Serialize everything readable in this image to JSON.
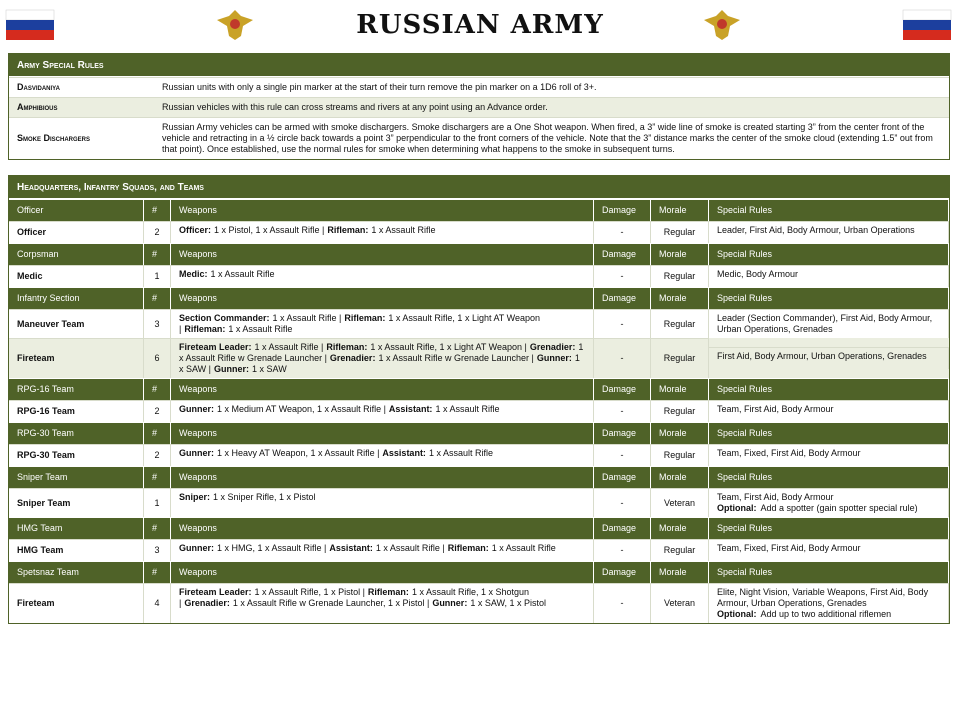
{
  "header": {
    "title": "RUSSIAN ARMY"
  },
  "special_rules": {
    "title": "Army Special Rules",
    "rows": [
      {
        "name": "Dasvidaniya",
        "text": "Russian units with only a single pin marker at the start of their turn remove the pin marker on a 1D6 roll of 3+."
      },
      {
        "name": "Amphibious",
        "text": "Russian vehicles with this rule can cross streams and rivers at any point using an Advance order."
      },
      {
        "name": "Smoke Dischargers",
        "text": "Russian Army vehicles can be armed with smoke dischargers.  Smoke dischargers are a One Shot weapon.  When fired, a 3” wide line of smoke is created starting 3” from the center front of the vehicle and retracting in a ½ circle back towards a point 3” perpendicular to the front corners of the vehicle.  Note that the 3” distance marks the center of the smoke cloud (extending 1.5” out from that point).  Once established, use the normal rules for smoke when determining what happens to the smoke in subsequent turns."
      }
    ]
  },
  "units": {
    "title": "Headquarters, Infantry Squads, and Teams",
    "groups": [
      {
        "header": [
          "Officer",
          "#",
          "Weapons",
          "Damage",
          "Morale",
          "Special Rules"
        ],
        "rows": [
          {
            "name": "Officer",
            "count": 2,
            "weapons": [
              {
                "role": "Officer:",
                "text": "1 x Pistol, 1 x Assault Rifle |"
              },
              {
                "role": "Rifleman:",
                "text": "1 x Assault Rifle"
              }
            ],
            "damage": "-",
            "morale": "Regular",
            "special": "Leader, First Aid, Body Armour, Urban Operations"
          }
        ]
      },
      {
        "header": [
          "Corpsman",
          "#",
          "Weapons",
          "Damage",
          "Morale",
          "Special Rules"
        ],
        "rows": [
          {
            "name": "Medic",
            "count": 1,
            "weapons": [
              {
                "role": "Medic:",
                "text": "1 x Assault Rifle"
              }
            ],
            "damage": "-",
            "morale": "Regular",
            "special": "Medic, Body Armour"
          }
        ]
      },
      {
        "header": [
          "Infantry Section",
          "#",
          "Weapons",
          "Damage",
          "Morale",
          "Special Rules"
        ],
        "rows": [
          {
            "name": "Maneuver Team",
            "count": 3,
            "weapons": [
              {
                "role": "Section Commander:",
                "text": "1 x Assault Rifle |"
              },
              {
                "role": "Rifleman:",
                "text": "1 x Assault Rifle, 1 x Light AT Weapon |"
              },
              {
                "role": "Rifleman:",
                "text": "1 x Assault Rifle"
              }
            ],
            "damage": "-",
            "morale": "Regular",
            "special": "Leader (Section Commander), First Aid, Body Armour, Urban Operations, Grenades"
          },
          {
            "name": "Fireteam",
            "count": 6,
            "weapons": [
              {
                "role": "Fireteam Leader:",
                "text": "1 x Assault Rifle |"
              },
              {
                "role": "Rifleman:",
                "text": "1 x Assault Rifle, 1 x Light AT Weapon |"
              },
              {
                "role": "Grenadier:",
                "text": "1 x Assault Rifle w Grenade Launcher |"
              },
              {
                "role": "Grenadier:",
                "text": "1 x Assault Rifle w Grenade Launcher |"
              },
              {
                "role": "Gunner:",
                "text": "1 x SAW |"
              },
              {
                "role": "Gunner:",
                "text": "1 x SAW"
              }
            ],
            "damage": "-",
            "morale": "Regular",
            "special": "First Aid, Body Armour, Urban Operations, Grenades"
          }
        ]
      },
      {
        "header": [
          "RPG-16 Team",
          "#",
          "Weapons",
          "Damage",
          "Morale",
          "Special Rules"
        ],
        "rows": [
          {
            "name": "RPG-16 Team",
            "count": 2,
            "weapons": [
              {
                "role": "Gunner:",
                "text": "1 x Medium AT Weapon, 1 x Assault Rifle |"
              },
              {
                "role": "Assistant:",
                "text": "1 x Assault Rifle"
              }
            ],
            "damage": "-",
            "morale": "Regular",
            "special": "Team, First Aid, Body Armour"
          }
        ]
      },
      {
        "header": [
          "RPG-30 Team",
          "#",
          "Weapons",
          "Damage",
          "Morale",
          "Special Rules"
        ],
        "rows": [
          {
            "name": "RPG-30 Team",
            "count": 2,
            "weapons": [
              {
                "role": "Gunner:",
                "text": "1 x Heavy AT Weapon, 1 x Assault Rifle |"
              },
              {
                "role": "Assistant:",
                "text": "1 x Assault Rifle"
              }
            ],
            "damage": "-",
            "morale": "Regular",
            "special": "Team, Fixed, First Aid, Body Armour"
          }
        ]
      },
      {
        "header": [
          "Sniper Team",
          "#",
          "Weapons",
          "Damage",
          "Morale",
          "Special Rules"
        ],
        "rows": [
          {
            "name": "Sniper Team",
            "count": 1,
            "weapons": [
              {
                "role": "Sniper:",
                "text": "1 x Sniper Rifle, 1 x Pistol"
              }
            ],
            "damage": "-",
            "morale": "Veteran",
            "special": "Team, First Aid, Body Armour",
            "optional": {
              "label": "Optional:",
              "text": "Add a spotter (gain spotter special rule)"
            }
          }
        ]
      },
      {
        "header": [
          "HMG Team",
          "#",
          "Weapons",
          "Damage",
          "Morale",
          "Special Rules"
        ],
        "rows": [
          {
            "name": "HMG Team",
            "count": 3,
            "weapons": [
              {
                "role": "Gunner:",
                "text": "1 x HMG, 1 x Assault Rifle |"
              },
              {
                "role": "Assistant:",
                "text": "1 x Assault Rifle |"
              },
              {
                "role": "Rifleman:",
                "text": "1 x Assault Rifle"
              }
            ],
            "damage": "-",
            "morale": "Regular",
            "special": "Team, Fixed, First Aid, Body Armour"
          }
        ]
      },
      {
        "header": [
          "Spetsnaz Team",
          "#",
          "Weapons",
          "Damage",
          "Morale",
          "Special Rules"
        ],
        "rows": [
          {
            "name": "Fireteam",
            "count": 4,
            "weapons": [
              {
                "role": "Fireteam Leader:",
                "text": "1 x Assault Rifle, 1 x Pistol |"
              },
              {
                "role": "Rifleman:",
                "text": "1 x Assault Rifle, 1 x Shotgun |"
              },
              {
                "role": "Grenadier:",
                "text": "1 x Assault Rifle w Grenade Launcher, 1 x Pistol |"
              },
              {
                "role": "Gunner:",
                "text": "1 x SAW, 1 x Pistol"
              }
            ],
            "damage": "-",
            "morale": "Veteran",
            "special": "Elite, Night Vision, Variable Weapons, First Aid, Body Armour, Urban Operations, Grenades",
            "optional": {
              "label": "Optional:",
              "text": "Add up to two additional riflemen"
            }
          }
        ]
      }
    ]
  }
}
